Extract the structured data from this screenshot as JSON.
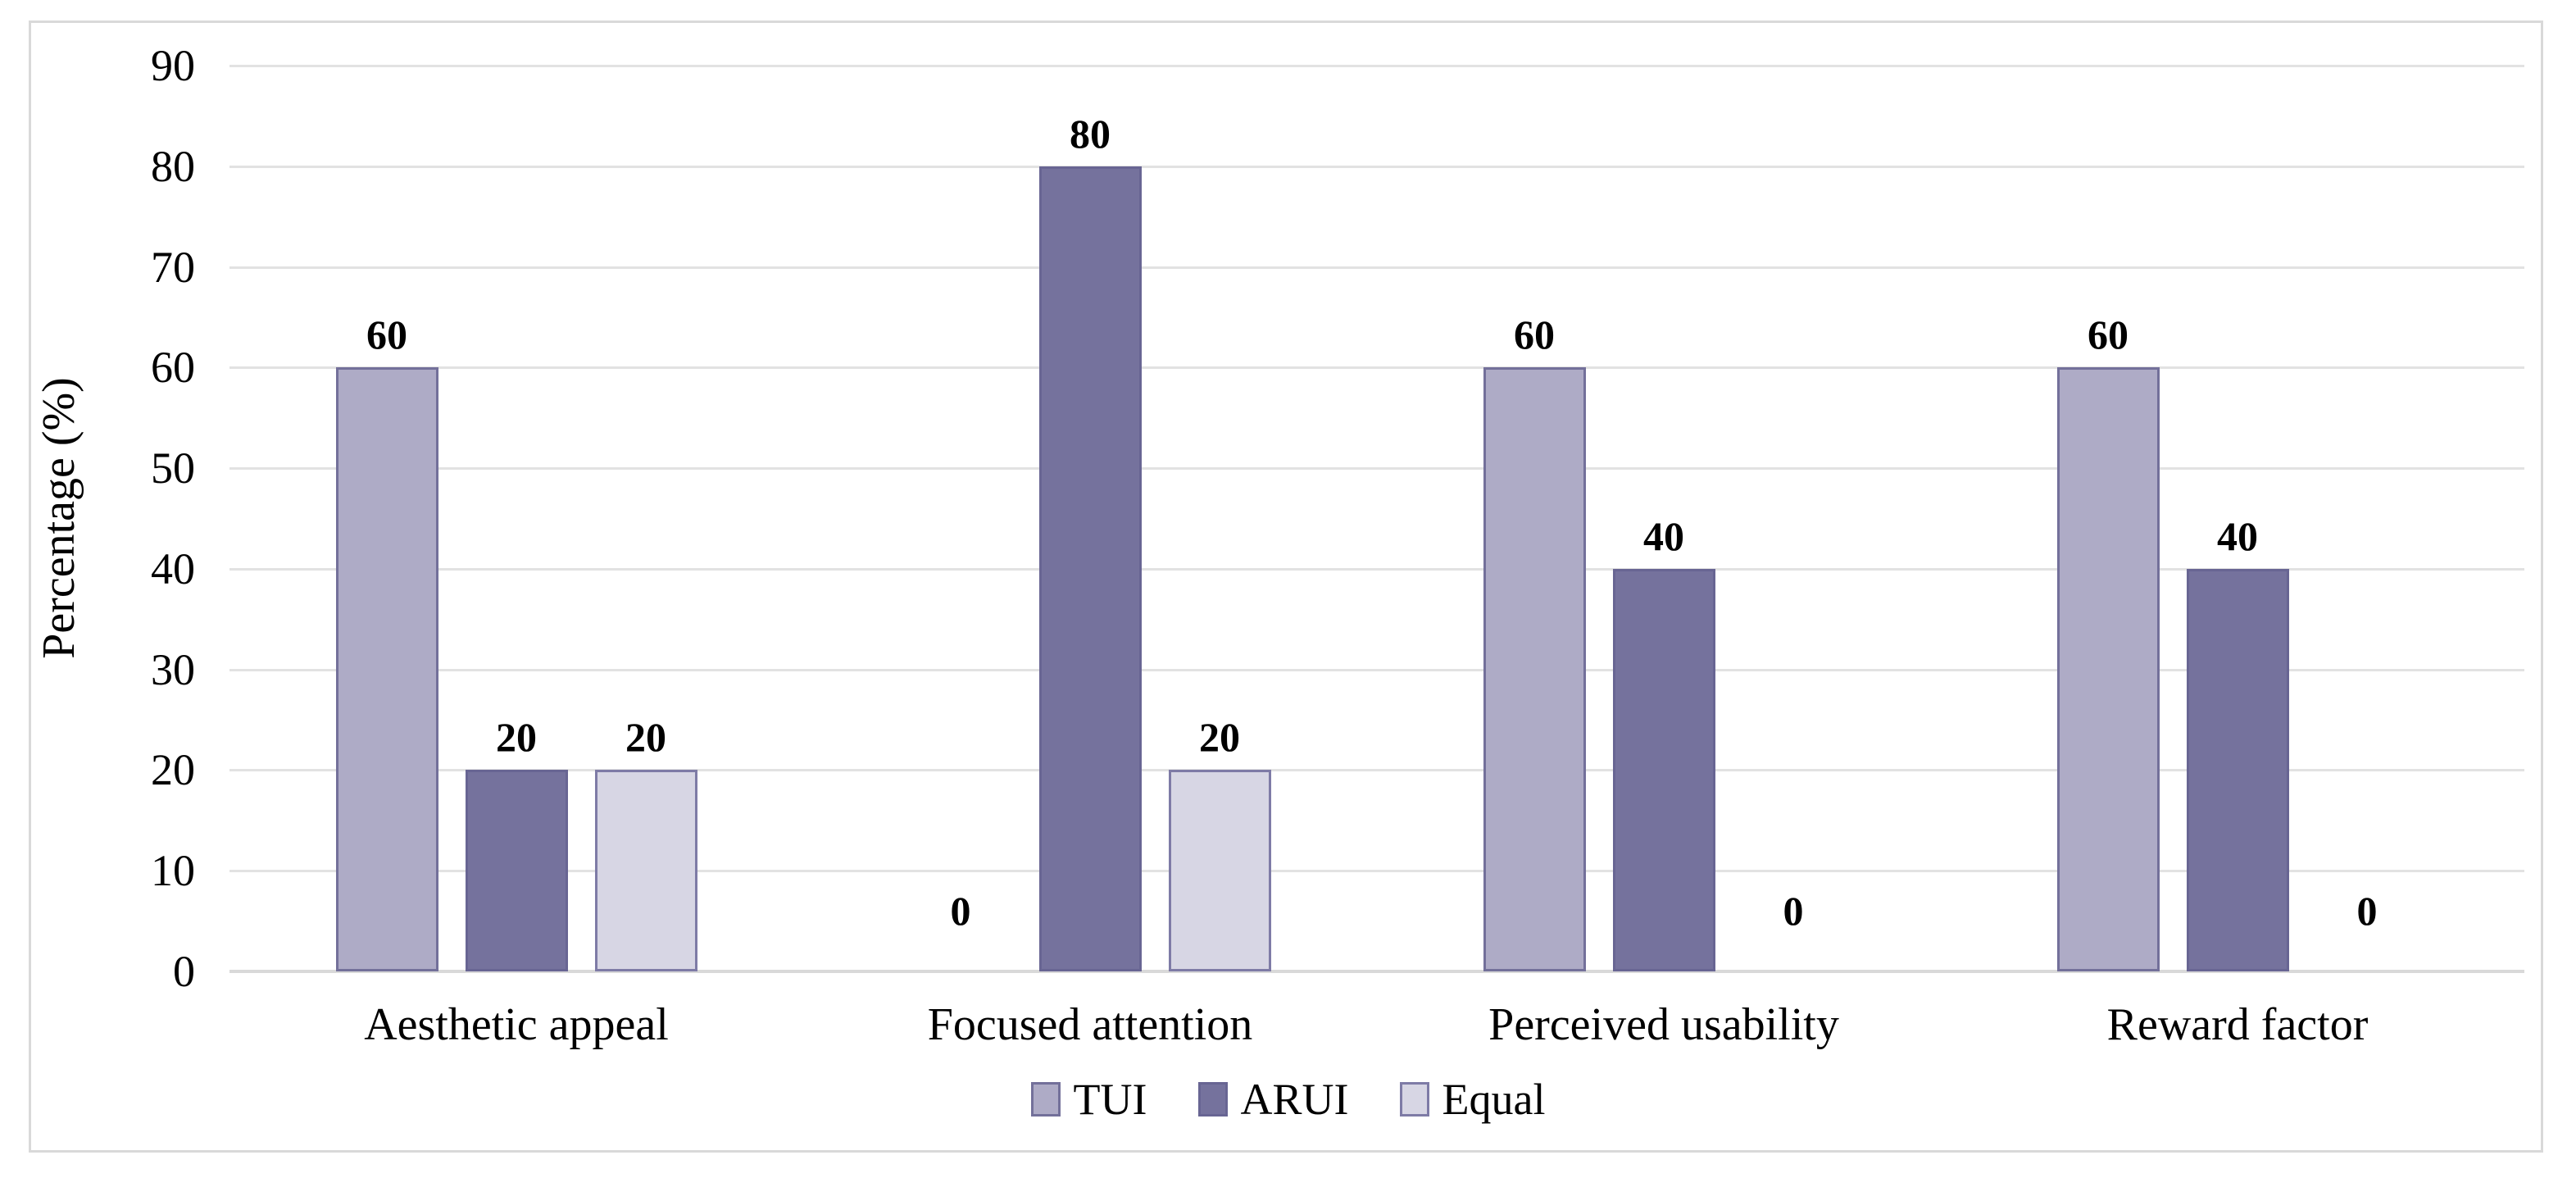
{
  "figure": {
    "background_color": "#ffffff",
    "frame_border_color": "#d9d9d9",
    "gridline_color": "#e2e2e2",
    "axis_line_color": "#d9d9d9",
    "text_color": "#000000"
  },
  "chart_data": {
    "type": "bar",
    "title": "",
    "xlabel": "",
    "ylabel": "Percentage (%)",
    "ylim": [
      0,
      90
    ],
    "y_ticks": [
      90,
      80,
      70,
      60,
      50,
      40,
      30,
      20,
      10,
      0
    ],
    "grid": true,
    "data_labels": true,
    "legend_position": "bottom",
    "categories": [
      "Aesthetic appeal",
      "Focused attention",
      "Perceived usability",
      "Reward factor"
    ],
    "series": [
      {
        "name": "TUI",
        "values": [
          60,
          0,
          60,
          60
        ],
        "fill": "#aeabc6",
        "border": "#73709a"
      },
      {
        "name": "ARUI",
        "values": [
          20,
          80,
          40,
          40
        ],
        "fill": "#75729d",
        "border": "#686593"
      },
      {
        "name": "Equal",
        "values": [
          20,
          20,
          0,
          0
        ],
        "fill": "#d7d6e4",
        "border": "#7e7ba6"
      }
    ]
  }
}
